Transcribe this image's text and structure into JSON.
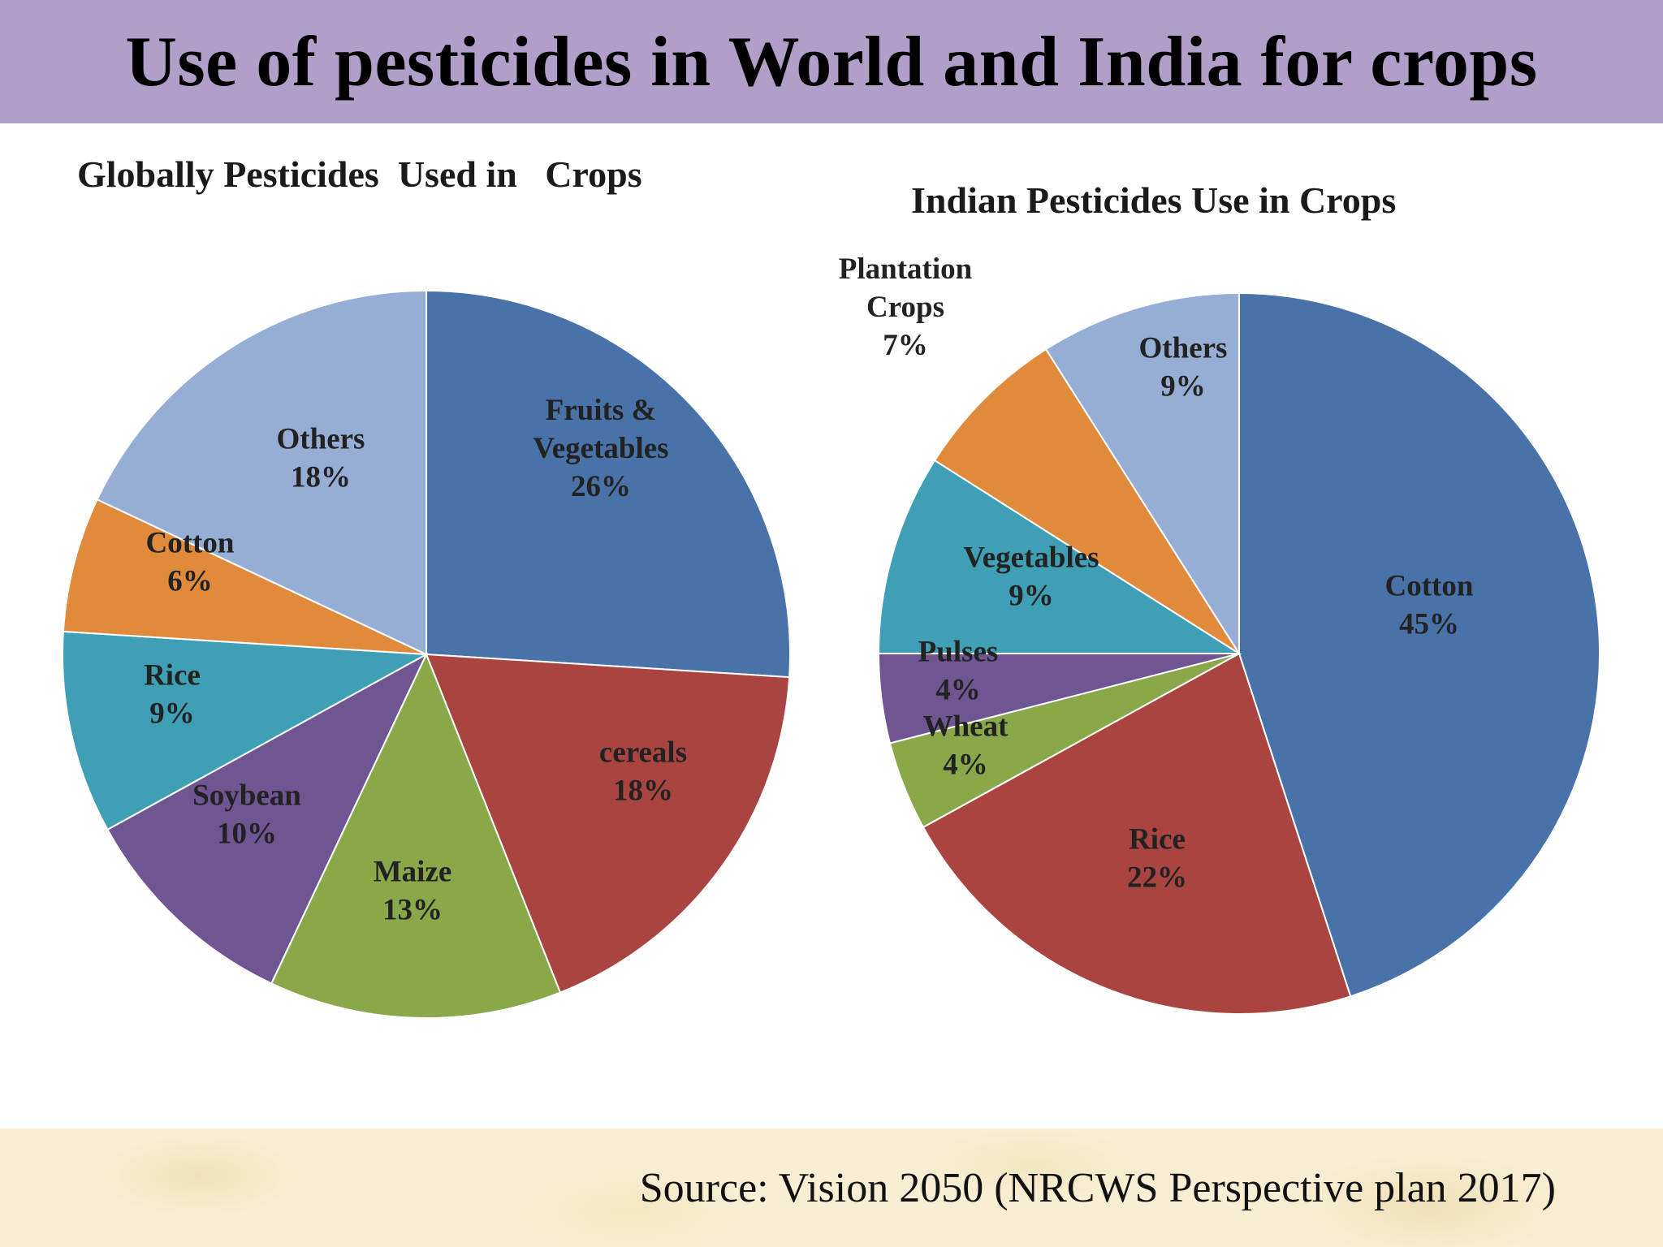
{
  "slide": {
    "title": "Use  of pesticides in World and India for crops",
    "source": "Source: Vision 2050 (NRCWS Perspective plan 2017)"
  },
  "colors": {
    "title_bar": "#b09fc8",
    "footer": "#f7eed3",
    "blue": "#4872a8",
    "red": "#aa4441",
    "green": "#8aa84a",
    "purple": "#6f5592",
    "teal": "#3f9fb4",
    "orange": "#e08a3c",
    "light_blue": "#96aed6"
  },
  "chart_data": [
    {
      "type": "pie",
      "title": "Globally Pesticides  Used in   Crops",
      "slices": [
        {
          "name": "Fruits & Vegetables",
          "label_lines": [
            "Fruits &",
            "Vegetables",
            "26%"
          ],
          "value": 26,
          "color": "#4872a8"
        },
        {
          "name": "cereals",
          "label_lines": [
            "cereals",
            "18%"
          ],
          "value": 18,
          "color": "#aa4441"
        },
        {
          "name": "Maize",
          "label_lines": [
            "Maize",
            "13%"
          ],
          "value": 13,
          "color": "#8aa84a"
        },
        {
          "name": "Soybean",
          "label_lines": [
            "Soybean",
            "10%"
          ],
          "value": 10,
          "color": "#6f5592"
        },
        {
          "name": "Rice",
          "label_lines": [
            "Rice",
            "9%"
          ],
          "value": 9,
          "color": "#3f9fb4"
        },
        {
          "name": "Cotton",
          "label_lines": [
            "Cotton",
            "6%"
          ],
          "value": 6,
          "color": "#e08a3c"
        },
        {
          "name": "Others",
          "label_lines": [
            "Others",
            "18%"
          ],
          "value": 18,
          "color": "#96aed6"
        }
      ]
    },
    {
      "type": "pie",
      "title": "Indian Pesticides Use in Crops",
      "slices": [
        {
          "name": "Cotton",
          "label_lines": [
            "Cotton",
            "45%"
          ],
          "value": 45,
          "color": "#4872a8"
        },
        {
          "name": "Rice",
          "label_lines": [
            "Rice",
            "22%"
          ],
          "value": 22,
          "color": "#aa4441"
        },
        {
          "name": "Wheat",
          "label_lines": [
            "Wheat",
            "4%"
          ],
          "value": 4,
          "color": "#8aa84a"
        },
        {
          "name": "Pulses",
          "label_lines": [
            "Pulses",
            "4%"
          ],
          "value": 4,
          "color": "#6f5592"
        },
        {
          "name": "Vegetables",
          "label_lines": [
            "Vegetables",
            "9%"
          ],
          "value": 9,
          "color": "#3f9fb4"
        },
        {
          "name": "Plantation Crops",
          "label_lines": [
            "Plantation",
            "Crops",
            "7%"
          ],
          "value": 7,
          "color": "#e08a3c"
        },
        {
          "name": "Others",
          "label_lines": [
            "Others",
            "9%"
          ],
          "value": 9,
          "color": "#96aed6"
        }
      ]
    }
  ]
}
